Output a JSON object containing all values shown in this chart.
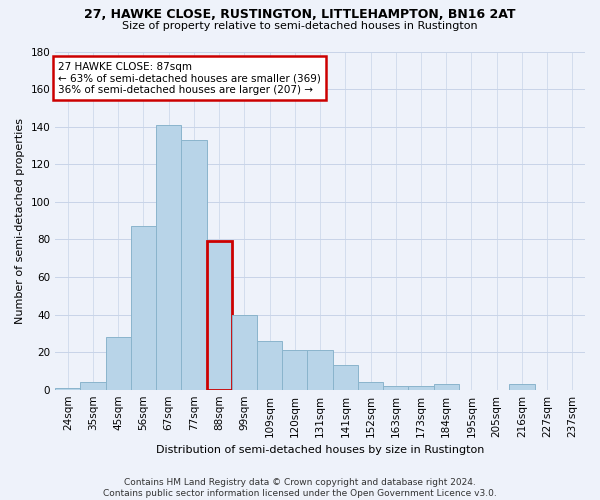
{
  "title1": "27, HAWKE CLOSE, RUSTINGTON, LITTLEHAMPTON, BN16 2AT",
  "title2": "Size of property relative to semi-detached houses in Rustington",
  "xlabel": "Distribution of semi-detached houses by size in Rustington",
  "ylabel": "Number of semi-detached properties",
  "footer1": "Contains HM Land Registry data © Crown copyright and database right 2024.",
  "footer2": "Contains public sector information licensed under the Open Government Licence v3.0.",
  "annotation_title": "27 HAWKE CLOSE: 87sqm",
  "annotation_line1": "← 63% of semi-detached houses are smaller (369)",
  "annotation_line2": "36% of semi-detached houses are larger (207) →",
  "bar_labels": [
    "24sqm",
    "35sqm",
    "45sqm",
    "56sqm",
    "67sqm",
    "77sqm",
    "88sqm",
    "99sqm",
    "109sqm",
    "120sqm",
    "131sqm",
    "141sqm",
    "152sqm",
    "163sqm",
    "173sqm",
    "184sqm",
    "195sqm",
    "205sqm",
    "216sqm",
    "227sqm",
    "237sqm"
  ],
  "bar_values": [
    1,
    4,
    28,
    87,
    141,
    133,
    79,
    40,
    26,
    21,
    21,
    13,
    4,
    2,
    2,
    3,
    0,
    0,
    3,
    0,
    0
  ],
  "highlight_index": 6,
  "bar_color_normal": "#b8d4e8",
  "bar_color_edge": "#8ab4cc",
  "highlight_edge_color": "#cc0000",
  "annotation_box_color": "#ffffff",
  "annotation_box_edge": "#cc0000",
  "ylim": [
    0,
    180
  ],
  "yticks": [
    0,
    20,
    40,
    60,
    80,
    100,
    120,
    140,
    160,
    180
  ],
  "grid_color": "#c8d4e8",
  "bg_color": "#eef2fa",
  "title1_fontsize": 9,
  "title2_fontsize": 8,
  "ylabel_fontsize": 8,
  "xlabel_fontsize": 8,
  "tick_fontsize": 7.5,
  "footer_fontsize": 6.5
}
